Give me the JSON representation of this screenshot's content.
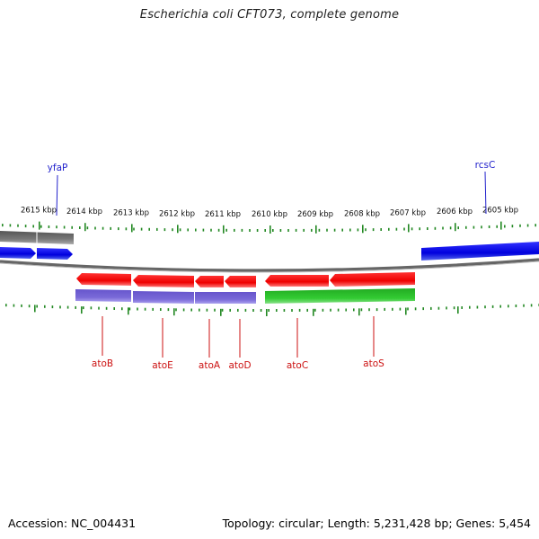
{
  "title": "Escherichia coli CFT073, complete genome",
  "footer": {
    "accession": "Accession: NC_004431",
    "summary": "Topology: circular; Length: 5,231,428 bp; Genes: 5,454"
  },
  "ticks": [
    "2615 kbp",
    "2614 kbp",
    "2613 kbp",
    "2612 kbp",
    "2611 kbp",
    "2610 kbp",
    "2609 kbp",
    "2608 kbp",
    "2607 kbp",
    "2606 kbp",
    "2605 kbp"
  ],
  "outer_labels": [
    "yfaP",
    "rcsC"
  ],
  "inner_labels": [
    "atoB",
    "atoE",
    "atoA",
    "atoD",
    "atoC",
    "atoS"
  ],
  "colors": {
    "gene_forward": "#0000e0",
    "gene_reverse": "#ee1111",
    "cog_purple": "#7766cc",
    "cog_green": "#33bb33",
    "backbone": "#777777",
    "tick": "#228822",
    "label_blue": "#2222cc",
    "label_red": "#cc1111"
  }
}
